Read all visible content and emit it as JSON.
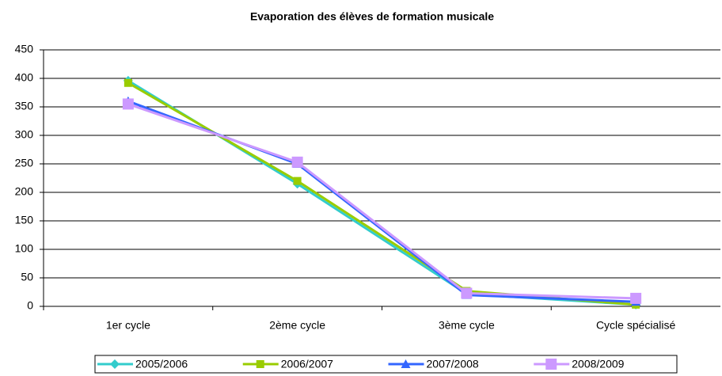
{
  "chart_data": {
    "type": "line",
    "title": "Evaporation des élèves de formation musicale",
    "categories": [
      "1er cycle",
      "2ème cycle",
      "3ème cycle",
      "Cycle spécialisé"
    ],
    "series": [
      {
        "name": "2005/2006",
        "color": "#33cccc",
        "marker": "diamond",
        "values": [
          396,
          215,
          22,
          3
        ]
      },
      {
        "name": "2006/2007",
        "color": "#99cc00",
        "marker": "square",
        "values": [
          392,
          220,
          27,
          3
        ]
      },
      {
        "name": "2007/2008",
        "color": "#3366ff",
        "marker": "triangle",
        "values": [
          360,
          250,
          20,
          8
        ]
      },
      {
        "name": "2008/2009",
        "color": "#cc99ff",
        "marker": "bigsquare",
        "values": [
          355,
          253,
          23,
          14
        ]
      }
    ],
    "ylim": [
      0,
      450
    ],
    "yticks": [
      0,
      50,
      100,
      150,
      200,
      250,
      300,
      350,
      400,
      450
    ],
    "grid": true,
    "legend": "bottom"
  }
}
